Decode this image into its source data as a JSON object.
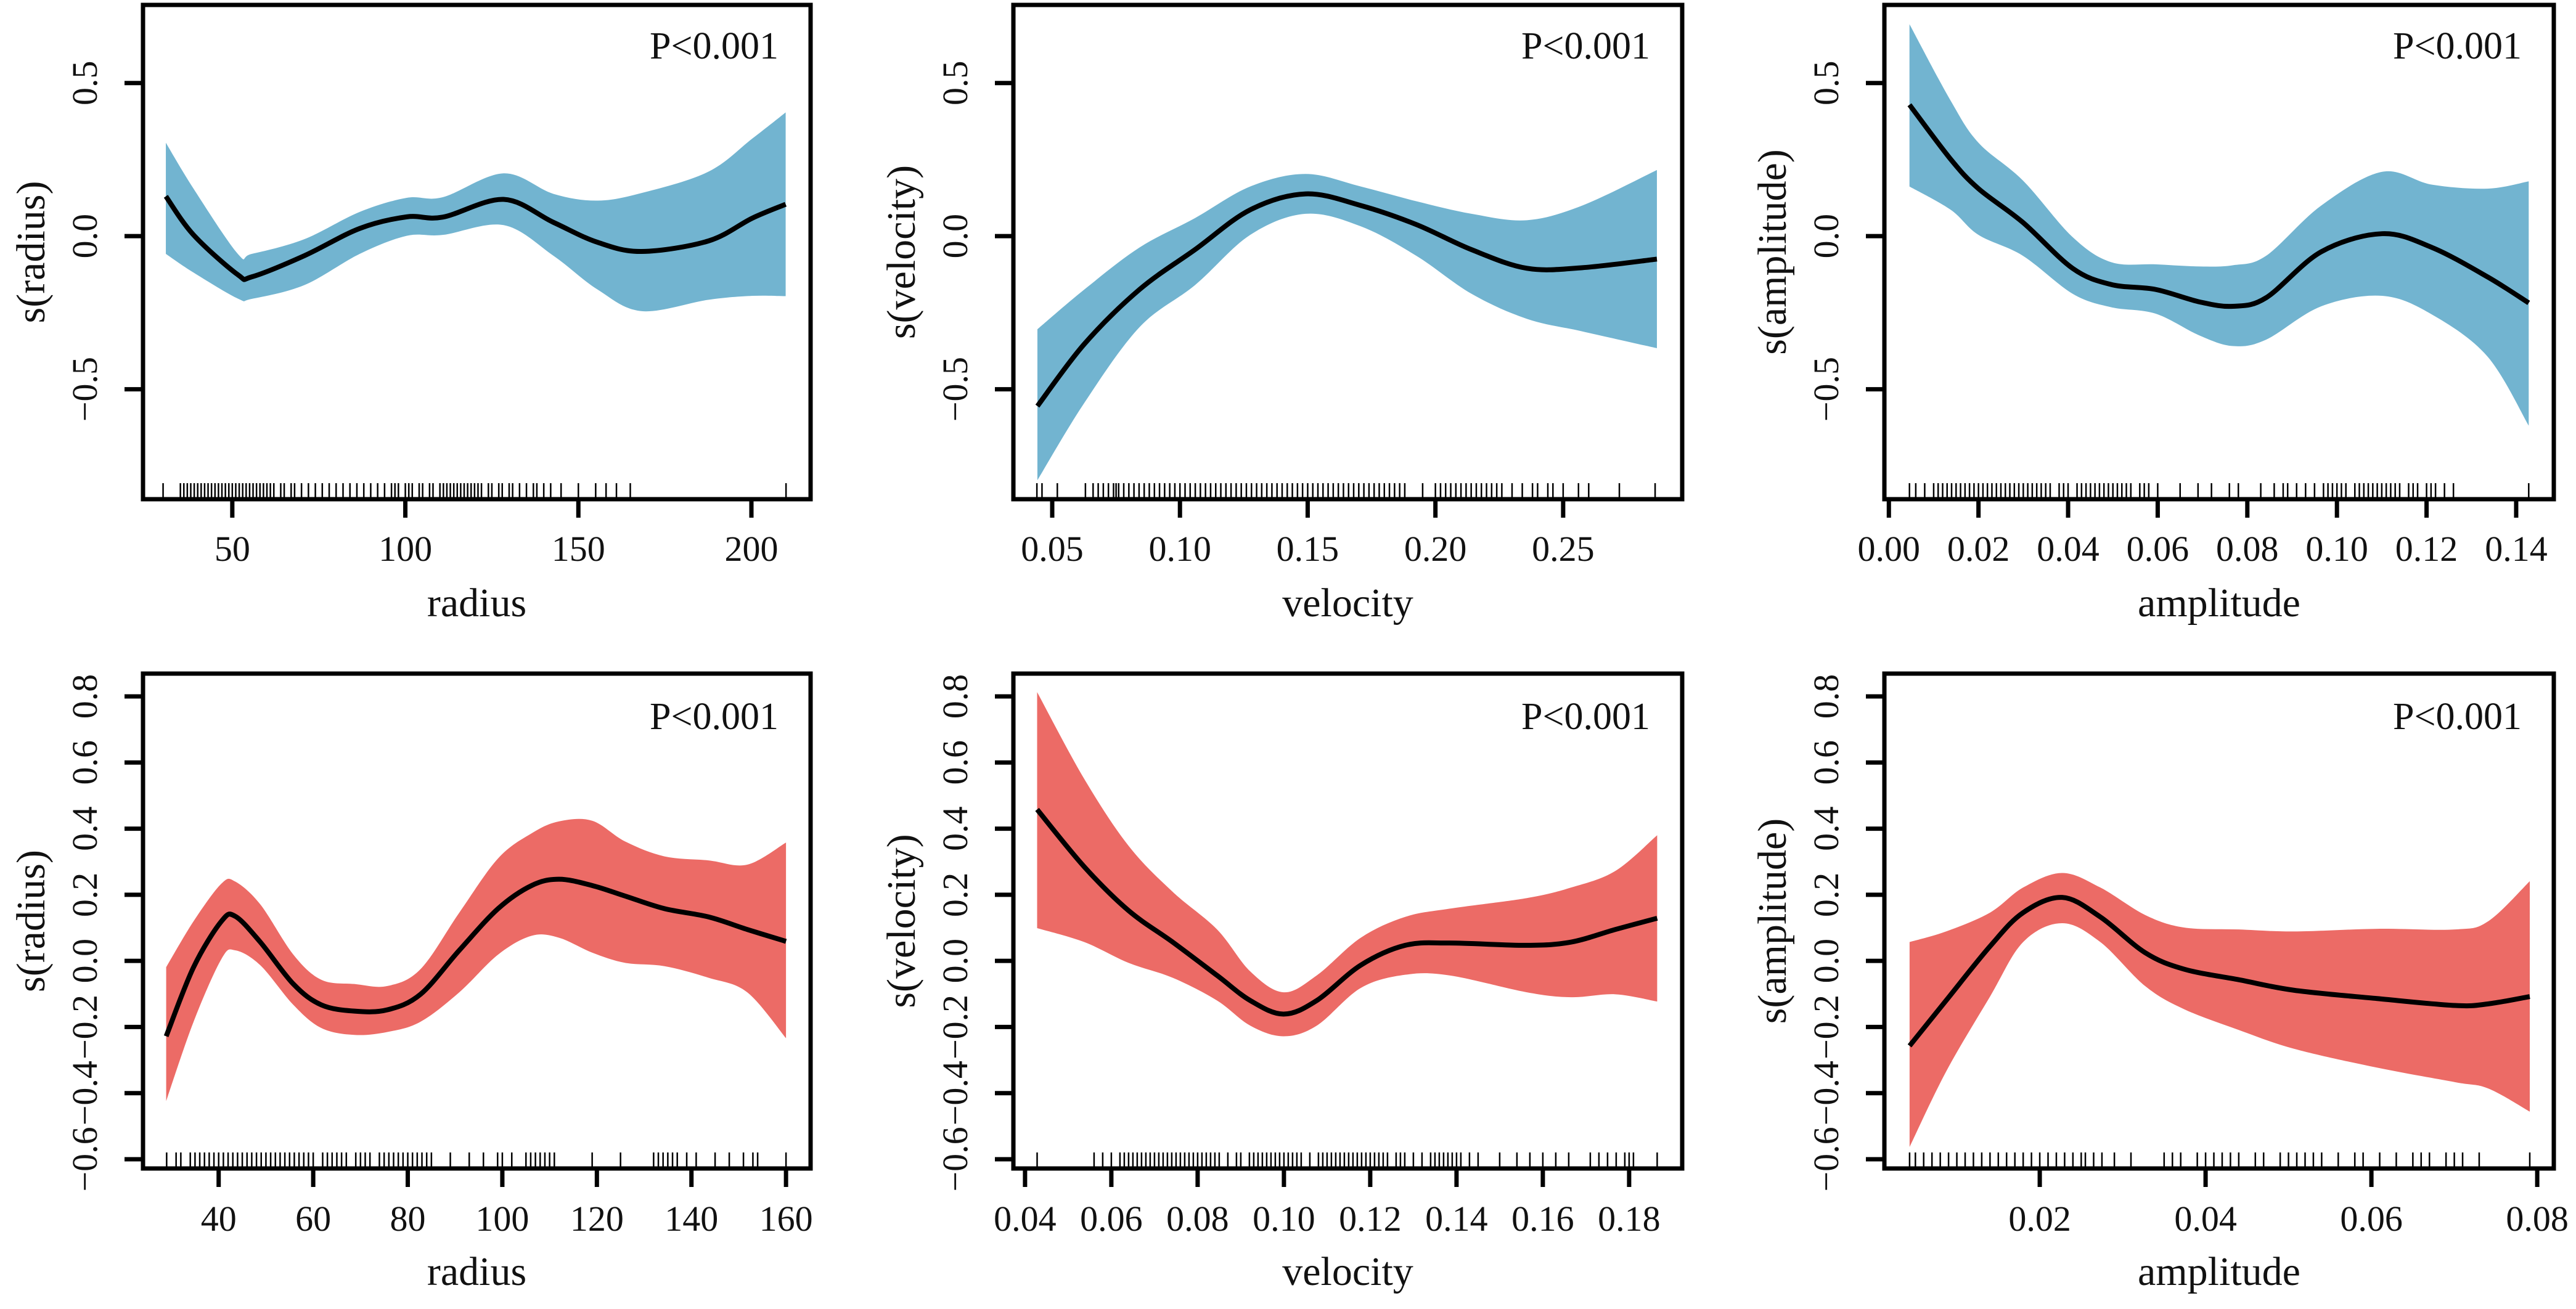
{
  "chart_data": [
    {
      "type": "line",
      "title": "",
      "xlabel": "radius",
      "ylabel": "s(radius)",
      "annotation": "P<0.001",
      "band_color": "#72B4D0",
      "xlim": [
        24.2,
        217.1
      ],
      "ylim": [
        -0.859,
        0.755
      ],
      "xticks": [
        50,
        100,
        150,
        200
      ],
      "xtick_labels": [
        "50",
        "100",
        "150",
        "200"
      ],
      "yticks": [
        -0.5,
        0.0,
        0.5
      ],
      "ytick_labels": [
        "−0.5",
        "0.0",
        "0.5"
      ],
      "x": [
        30.8,
        38.8,
        51.6,
        55.6,
        70.8,
        86.8,
        100.4,
        110.8,
        128.4,
        142.8,
        155.5,
        168.3,
        187.5,
        200.3,
        209.9
      ],
      "fit": [
        0.13,
        0.004,
        -0.126,
        -0.133,
        -0.064,
        0.025,
        0.063,
        0.062,
        0.12,
        0.045,
        -0.02,
        -0.05,
        -0.016,
        0.059,
        0.104
      ],
      "upper": [
        0.305,
        0.155,
        -0.058,
        -0.058,
        -0.01,
        0.079,
        0.125,
        0.127,
        0.205,
        0.138,
        0.116,
        0.141,
        0.21,
        0.319,
        0.404
      ],
      "lower": [
        -0.058,
        -0.119,
        -0.204,
        -0.205,
        -0.16,
        -0.058,
        0.001,
        0.004,
        0.036,
        -0.064,
        -0.174,
        -0.245,
        -0.208,
        -0.195,
        -0.196
      ],
      "rug": [
        30,
        35,
        36,
        37,
        38,
        39,
        40,
        41,
        42,
        43,
        44,
        45,
        46,
        47,
        48,
        49,
        50,
        51,
        52,
        53,
        54,
        55,
        56,
        57,
        58,
        59,
        60,
        61,
        62,
        64,
        65,
        67,
        68,
        70,
        72,
        74,
        76,
        78,
        80,
        82,
        84,
        86,
        88,
        90,
        92,
        94,
        96,
        97,
        98,
        100,
        101,
        102,
        104,
        105,
        107,
        108,
        110,
        111,
        112,
        113,
        114,
        115,
        116,
        117,
        118,
        119,
        120,
        121,
        122,
        124,
        125,
        127,
        128,
        130,
        131,
        133,
        135,
        137,
        138,
        140,
        142,
        145,
        150,
        155,
        158,
        161,
        165,
        210
      ]
    },
    {
      "type": "line",
      "title": "",
      "xlabel": "velocity",
      "ylabel": "s(velocity)",
      "annotation": "P<0.001",
      "band_color": "#72B4D0",
      "xlim": [
        0.0348,
        0.2966
      ],
      "ylim": [
        -0.859,
        0.755
      ],
      "xticks": [
        0.05,
        0.1,
        0.15,
        0.2,
        0.25
      ],
      "xtick_labels": [
        "0.05",
        "0.10",
        "0.15",
        "0.20",
        "0.25"
      ],
      "yticks": [
        -0.5,
        0.0,
        0.5
      ],
      "ytick_labels": [
        "−0.5",
        "0.0",
        "0.5"
      ],
      "x": [
        0.0442,
        0.0626,
        0.0842,
        0.1059,
        0.1275,
        0.1492,
        0.1708,
        0.1925,
        0.2141,
        0.2358,
        0.2575,
        0.2867
      ],
      "fit": [
        -0.555,
        -0.352,
        -0.174,
        -0.044,
        0.086,
        0.138,
        0.1,
        0.038,
        -0.044,
        -0.105,
        -0.103,
        -0.075
      ],
      "upper": [
        -0.304,
        -0.174,
        -0.037,
        0.059,
        0.162,
        0.203,
        0.162,
        0.114,
        0.073,
        0.052,
        0.1,
        0.216
      ],
      "lower": [
        -0.797,
        -0.544,
        -0.297,
        -0.16,
        0.004,
        0.073,
        0.032,
        -0.064,
        -0.188,
        -0.27,
        -0.311,
        -0.366
      ],
      "rug": [
        0.044,
        0.046,
        0.052,
        0.063,
        0.066,
        0.068,
        0.07,
        0.072,
        0.074,
        0.075,
        0.076,
        0.078,
        0.08,
        0.082,
        0.084,
        0.086,
        0.088,
        0.09,
        0.092,
        0.094,
        0.096,
        0.098,
        0.1,
        0.102,
        0.104,
        0.106,
        0.108,
        0.11,
        0.112,
        0.114,
        0.116,
        0.118,
        0.12,
        0.122,
        0.124,
        0.126,
        0.128,
        0.13,
        0.132,
        0.134,
        0.136,
        0.138,
        0.14,
        0.142,
        0.144,
        0.146,
        0.148,
        0.15,
        0.152,
        0.154,
        0.156,
        0.158,
        0.16,
        0.162,
        0.164,
        0.166,
        0.168,
        0.17,
        0.172,
        0.174,
        0.176,
        0.178,
        0.18,
        0.182,
        0.184,
        0.186,
        0.188,
        0.195,
        0.2,
        0.202,
        0.204,
        0.206,
        0.208,
        0.21,
        0.212,
        0.214,
        0.216,
        0.218,
        0.22,
        0.222,
        0.224,
        0.226,
        0.23,
        0.234,
        0.238,
        0.24,
        0.244,
        0.246,
        0.25,
        0.256,
        0.26,
        0.272,
        0.286
      ]
    },
    {
      "type": "line",
      "title": "",
      "xlabel": "amplitude",
      "ylabel": "s(amplitude)",
      "annotation": "P<0.001",
      "band_color": "#72B4D0",
      "xlim": [
        -0.001,
        0.1484
      ],
      "ylim": [
        -0.859,
        0.755
      ],
      "xticks": [
        0.0,
        0.02,
        0.04,
        0.06,
        0.08,
        0.1,
        0.12,
        0.14
      ],
      "xtick_labels": [
        "0.00",
        "0.02",
        "0.04",
        "0.06",
        "0.08",
        "0.10",
        "0.12",
        "0.14"
      ],
      "yticks": [
        -0.5,
        0.0,
        0.5
      ],
      "ytick_labels": [
        "−0.5",
        "0.0",
        "0.5"
      ],
      "x": [
        0.0046,
        0.0138,
        0.02,
        0.0299,
        0.041,
        0.0496,
        0.0595,
        0.0694,
        0.0768,
        0.0842,
        0.0965,
        0.1101,
        0.1212,
        0.1336,
        0.1428
      ],
      "fit": [
        0.429,
        0.251,
        0.155,
        0.045,
        -0.105,
        -0.158,
        -0.174,
        -0.215,
        -0.229,
        -0.201,
        -0.051,
        0.008,
        -0.037,
        -0.133,
        -0.218
      ],
      "upper": [
        0.692,
        0.442,
        0.305,
        0.182,
        -0.003,
        -0.085,
        -0.092,
        -0.099,
        -0.095,
        -0.064,
        0.1,
        0.21,
        0.168,
        0.155,
        0.179
      ],
      "lower": [
        0.162,
        0.086,
        0.004,
        -0.064,
        -0.188,
        -0.232,
        -0.253,
        -0.325,
        -0.359,
        -0.338,
        -0.229,
        -0.195,
        -0.256,
        -0.393,
        -0.619
      ],
      "rug": [
        0.0046,
        0.006,
        0.008,
        0.01,
        0.011,
        0.012,
        0.013,
        0.014,
        0.015,
        0.016,
        0.017,
        0.018,
        0.019,
        0.02,
        0.021,
        0.022,
        0.023,
        0.024,
        0.025,
        0.026,
        0.027,
        0.028,
        0.029,
        0.03,
        0.031,
        0.032,
        0.033,
        0.034,
        0.035,
        0.036,
        0.038,
        0.039,
        0.04,
        0.042,
        0.043,
        0.044,
        0.045,
        0.046,
        0.047,
        0.048,
        0.049,
        0.05,
        0.051,
        0.052,
        0.053,
        0.054,
        0.056,
        0.057,
        0.058,
        0.06,
        0.065,
        0.069,
        0.072,
        0.076,
        0.078,
        0.083,
        0.086,
        0.088,
        0.089,
        0.091,
        0.093,
        0.095,
        0.097,
        0.098,
        0.099,
        0.1,
        0.101,
        0.102,
        0.104,
        0.105,
        0.106,
        0.107,
        0.108,
        0.109,
        0.11,
        0.111,
        0.112,
        0.113,
        0.114,
        0.116,
        0.117,
        0.118,
        0.12,
        0.121,
        0.122,
        0.124,
        0.126,
        0.1428
      ]
    },
    {
      "type": "line",
      "title": "",
      "xlabel": "radius",
      "ylabel": "s(radius)",
      "annotation": "P<0.001",
      "band_color": "#EC6B66",
      "xlim": [
        24.0,
        165.2
      ],
      "ylim": [
        -0.628,
        0.869
      ],
      "xticks": [
        40,
        60,
        80,
        100,
        120,
        140,
        160
      ],
      "xtick_labels": [
        "40",
        "60",
        "80",
        "100",
        "120",
        "140",
        "160"
      ],
      "yticks": [
        -0.6,
        -0.4,
        -0.2,
        0.0,
        0.2,
        0.4,
        0.6,
        0.8
      ],
      "ytick_labels": [
        "−0.6",
        "−0.4",
        "−0.2",
        "0.0",
        "0.2",
        "0.4",
        "0.6",
        "0.8"
      ],
      "x": [
        28.9,
        34.7,
        40.6,
        43.5,
        48.8,
        55.8,
        61.7,
        68.7,
        75.7,
        82.7,
        90.9,
        99.1,
        106.2,
        112,
        119,
        126,
        134.3,
        143.6,
        151.8,
        160
      ],
      "fit": [
        -0.228,
        -0.019,
        0.12,
        0.135,
        0.057,
        -0.07,
        -0.133,
        -0.152,
        -0.148,
        -0.101,
        0.032,
        0.158,
        0.228,
        0.247,
        0.228,
        0.196,
        0.158,
        0.133,
        0.095,
        0.059
      ],
      "upper": [
        -0.019,
        0.12,
        0.234,
        0.24,
        0.171,
        0.019,
        -0.057,
        -0.07,
        -0.076,
        -0.025,
        0.146,
        0.31,
        0.386,
        0.422,
        0.424,
        0.361,
        0.316,
        0.304,
        0.291,
        0.358
      ],
      "lower": [
        -0.424,
        -0.184,
        0.006,
        0.032,
        -0.013,
        -0.133,
        -0.203,
        -0.224,
        -0.215,
        -0.184,
        -0.095,
        0.019,
        0.076,
        0.07,
        0.025,
        -0.006,
        -0.016,
        -0.051,
        -0.095,
        -0.234
      ],
      "rug": [
        29,
        31,
        32,
        34,
        35,
        36,
        37,
        38,
        39,
        40,
        41,
        42,
        43,
        44,
        45,
        46,
        47,
        48,
        49,
        50,
        51,
        52,
        53,
        54,
        55,
        56,
        57,
        58,
        59,
        60,
        62,
        63,
        64,
        65,
        66,
        67,
        69,
        70,
        71,
        72,
        74,
        75,
        76,
        77,
        78,
        79,
        80,
        81,
        82,
        83,
        84,
        85,
        89,
        93,
        96,
        99,
        100,
        102,
        105,
        106,
        107,
        108,
        109,
        110,
        111,
        119,
        125,
        132,
        133,
        134,
        135,
        136,
        137,
        139,
        141,
        145,
        148,
        151,
        153,
        154,
        160
      ]
    },
    {
      "type": "line",
      "title": "",
      "xlabel": "velocity",
      "ylabel": "s(velocity)",
      "annotation": "P<0.001",
      "band_color": "#EC6B66",
      "xlim": [
        0.0373,
        0.1923
      ],
      "ylim": [
        -0.628,
        0.869
      ],
      "xticks": [
        0.04,
        0.06,
        0.08,
        0.1,
        0.12,
        0.14,
        0.16,
        0.18
      ],
      "xtick_labels": [
        "0.04",
        "0.06",
        "0.08",
        "0.10",
        "0.12",
        "0.14",
        "0.16",
        "0.18"
      ],
      "yticks": [
        -0.6,
        -0.4,
        -0.2,
        0.0,
        0.2,
        0.4,
        0.6,
        0.8
      ],
      "ytick_labels": [
        "−0.6",
        "−0.4",
        "−0.2",
        "0.0",
        "0.2",
        "0.4",
        "0.6",
        "0.8"
      ],
      "x": [
        0.0428,
        0.0537,
        0.064,
        0.0742,
        0.0845,
        0.0922,
        0.0999,
        0.1076,
        0.1178,
        0.1281,
        0.1384,
        0.1563,
        0.1666,
        0.1768,
        0.1865
      ],
      "fit": [
        0.458,
        0.285,
        0.152,
        0.057,
        -0.044,
        -0.12,
        -0.161,
        -0.12,
        -0.013,
        0.047,
        0.054,
        0.047,
        0.057,
        0.095,
        0.129
      ],
      "upper": [
        0.813,
        0.551,
        0.348,
        0.209,
        0.095,
        -0.032,
        -0.095,
        -0.044,
        0.07,
        0.133,
        0.158,
        0.19,
        0.222,
        0.272,
        0.38
      ],
      "lower": [
        0.099,
        0.057,
        -0.006,
        -0.051,
        -0.12,
        -0.196,
        -0.228,
        -0.196,
        -0.082,
        -0.042,
        -0.044,
        -0.095,
        -0.11,
        -0.101,
        -0.123
      ],
      "rug": [
        0.0428,
        0.056,
        0.058,
        0.06,
        0.062,
        0.063,
        0.064,
        0.065,
        0.066,
        0.067,
        0.068,
        0.069,
        0.07,
        0.071,
        0.072,
        0.073,
        0.074,
        0.075,
        0.076,
        0.077,
        0.078,
        0.079,
        0.08,
        0.081,
        0.082,
        0.083,
        0.084,
        0.085,
        0.087,
        0.089,
        0.09,
        0.092,
        0.093,
        0.094,
        0.095,
        0.096,
        0.097,
        0.098,
        0.099,
        0.1,
        0.101,
        0.102,
        0.103,
        0.104,
        0.106,
        0.108,
        0.109,
        0.11,
        0.111,
        0.112,
        0.113,
        0.114,
        0.115,
        0.116,
        0.117,
        0.118,
        0.119,
        0.12,
        0.121,
        0.122,
        0.123,
        0.124,
        0.126,
        0.127,
        0.128,
        0.13,
        0.132,
        0.134,
        0.135,
        0.136,
        0.137,
        0.138,
        0.139,
        0.14,
        0.141,
        0.143,
        0.145,
        0.15,
        0.154,
        0.157,
        0.16,
        0.163,
        0.166,
        0.171,
        0.173,
        0.175,
        0.177,
        0.179,
        0.18,
        0.181,
        0.1865
      ]
    },
    {
      "type": "line",
      "title": "",
      "xlabel": "amplitude",
      "ylabel": "s(amplitude)",
      "annotation": "P<0.001",
      "band_color": "#EC6B66",
      "xlim": [
        0.00126,
        0.082
      ],
      "ylim": [
        -0.628,
        0.869
      ],
      "xticks": [
        0.02,
        0.04,
        0.06,
        0.08
      ],
      "xtick_labels": [
        "0.02",
        "0.04",
        "0.06",
        "0.08"
      ],
      "yticks": [
        -0.6,
        -0.4,
        -0.2,
        0.0,
        0.2,
        0.4,
        0.6,
        0.8
      ],
      "ytick_labels": [
        "−0.6",
        "−0.4",
        "−0.2",
        "0.0",
        "0.2",
        "0.4",
        "0.6",
        "0.8"
      ],
      "x": [
        0.0043,
        0.0087,
        0.014,
        0.018,
        0.0227,
        0.0273,
        0.0327,
        0.0374,
        0.044,
        0.0507,
        0.0607,
        0.0701,
        0.0741,
        0.0791
      ],
      "fit": [
        -0.257,
        -0.12,
        0.044,
        0.146,
        0.192,
        0.133,
        0.025,
        -0.025,
        -0.057,
        -0.089,
        -0.114,
        -0.135,
        -0.13,
        -0.108
      ],
      "upper": [
        0.057,
        0.089,
        0.146,
        0.222,
        0.266,
        0.222,
        0.139,
        0.101,
        0.095,
        0.089,
        0.097,
        0.095,
        0.12,
        0.241
      ],
      "lower": [
        -0.563,
        -0.335,
        -0.108,
        0.057,
        0.114,
        0.057,
        -0.076,
        -0.146,
        -0.209,
        -0.266,
        -0.323,
        -0.367,
        -0.386,
        -0.456
      ],
      "rug": [
        0.0043,
        0.005,
        0.006,
        0.007,
        0.008,
        0.009,
        0.01,
        0.011,
        0.012,
        0.013,
        0.014,
        0.015,
        0.016,
        0.017,
        0.018,
        0.019,
        0.02,
        0.021,
        0.022,
        0.023,
        0.024,
        0.025,
        0.0255,
        0.0265,
        0.0275,
        0.029,
        0.031,
        0.035,
        0.036,
        0.037,
        0.039,
        0.04,
        0.041,
        0.042,
        0.043,
        0.044,
        0.046,
        0.047,
        0.049,
        0.05,
        0.051,
        0.052,
        0.053,
        0.054,
        0.056,
        0.058,
        0.059,
        0.061,
        0.063,
        0.065,
        0.066,
        0.067,
        0.069,
        0.07,
        0.071,
        0.073,
        0.0791
      ]
    }
  ]
}
